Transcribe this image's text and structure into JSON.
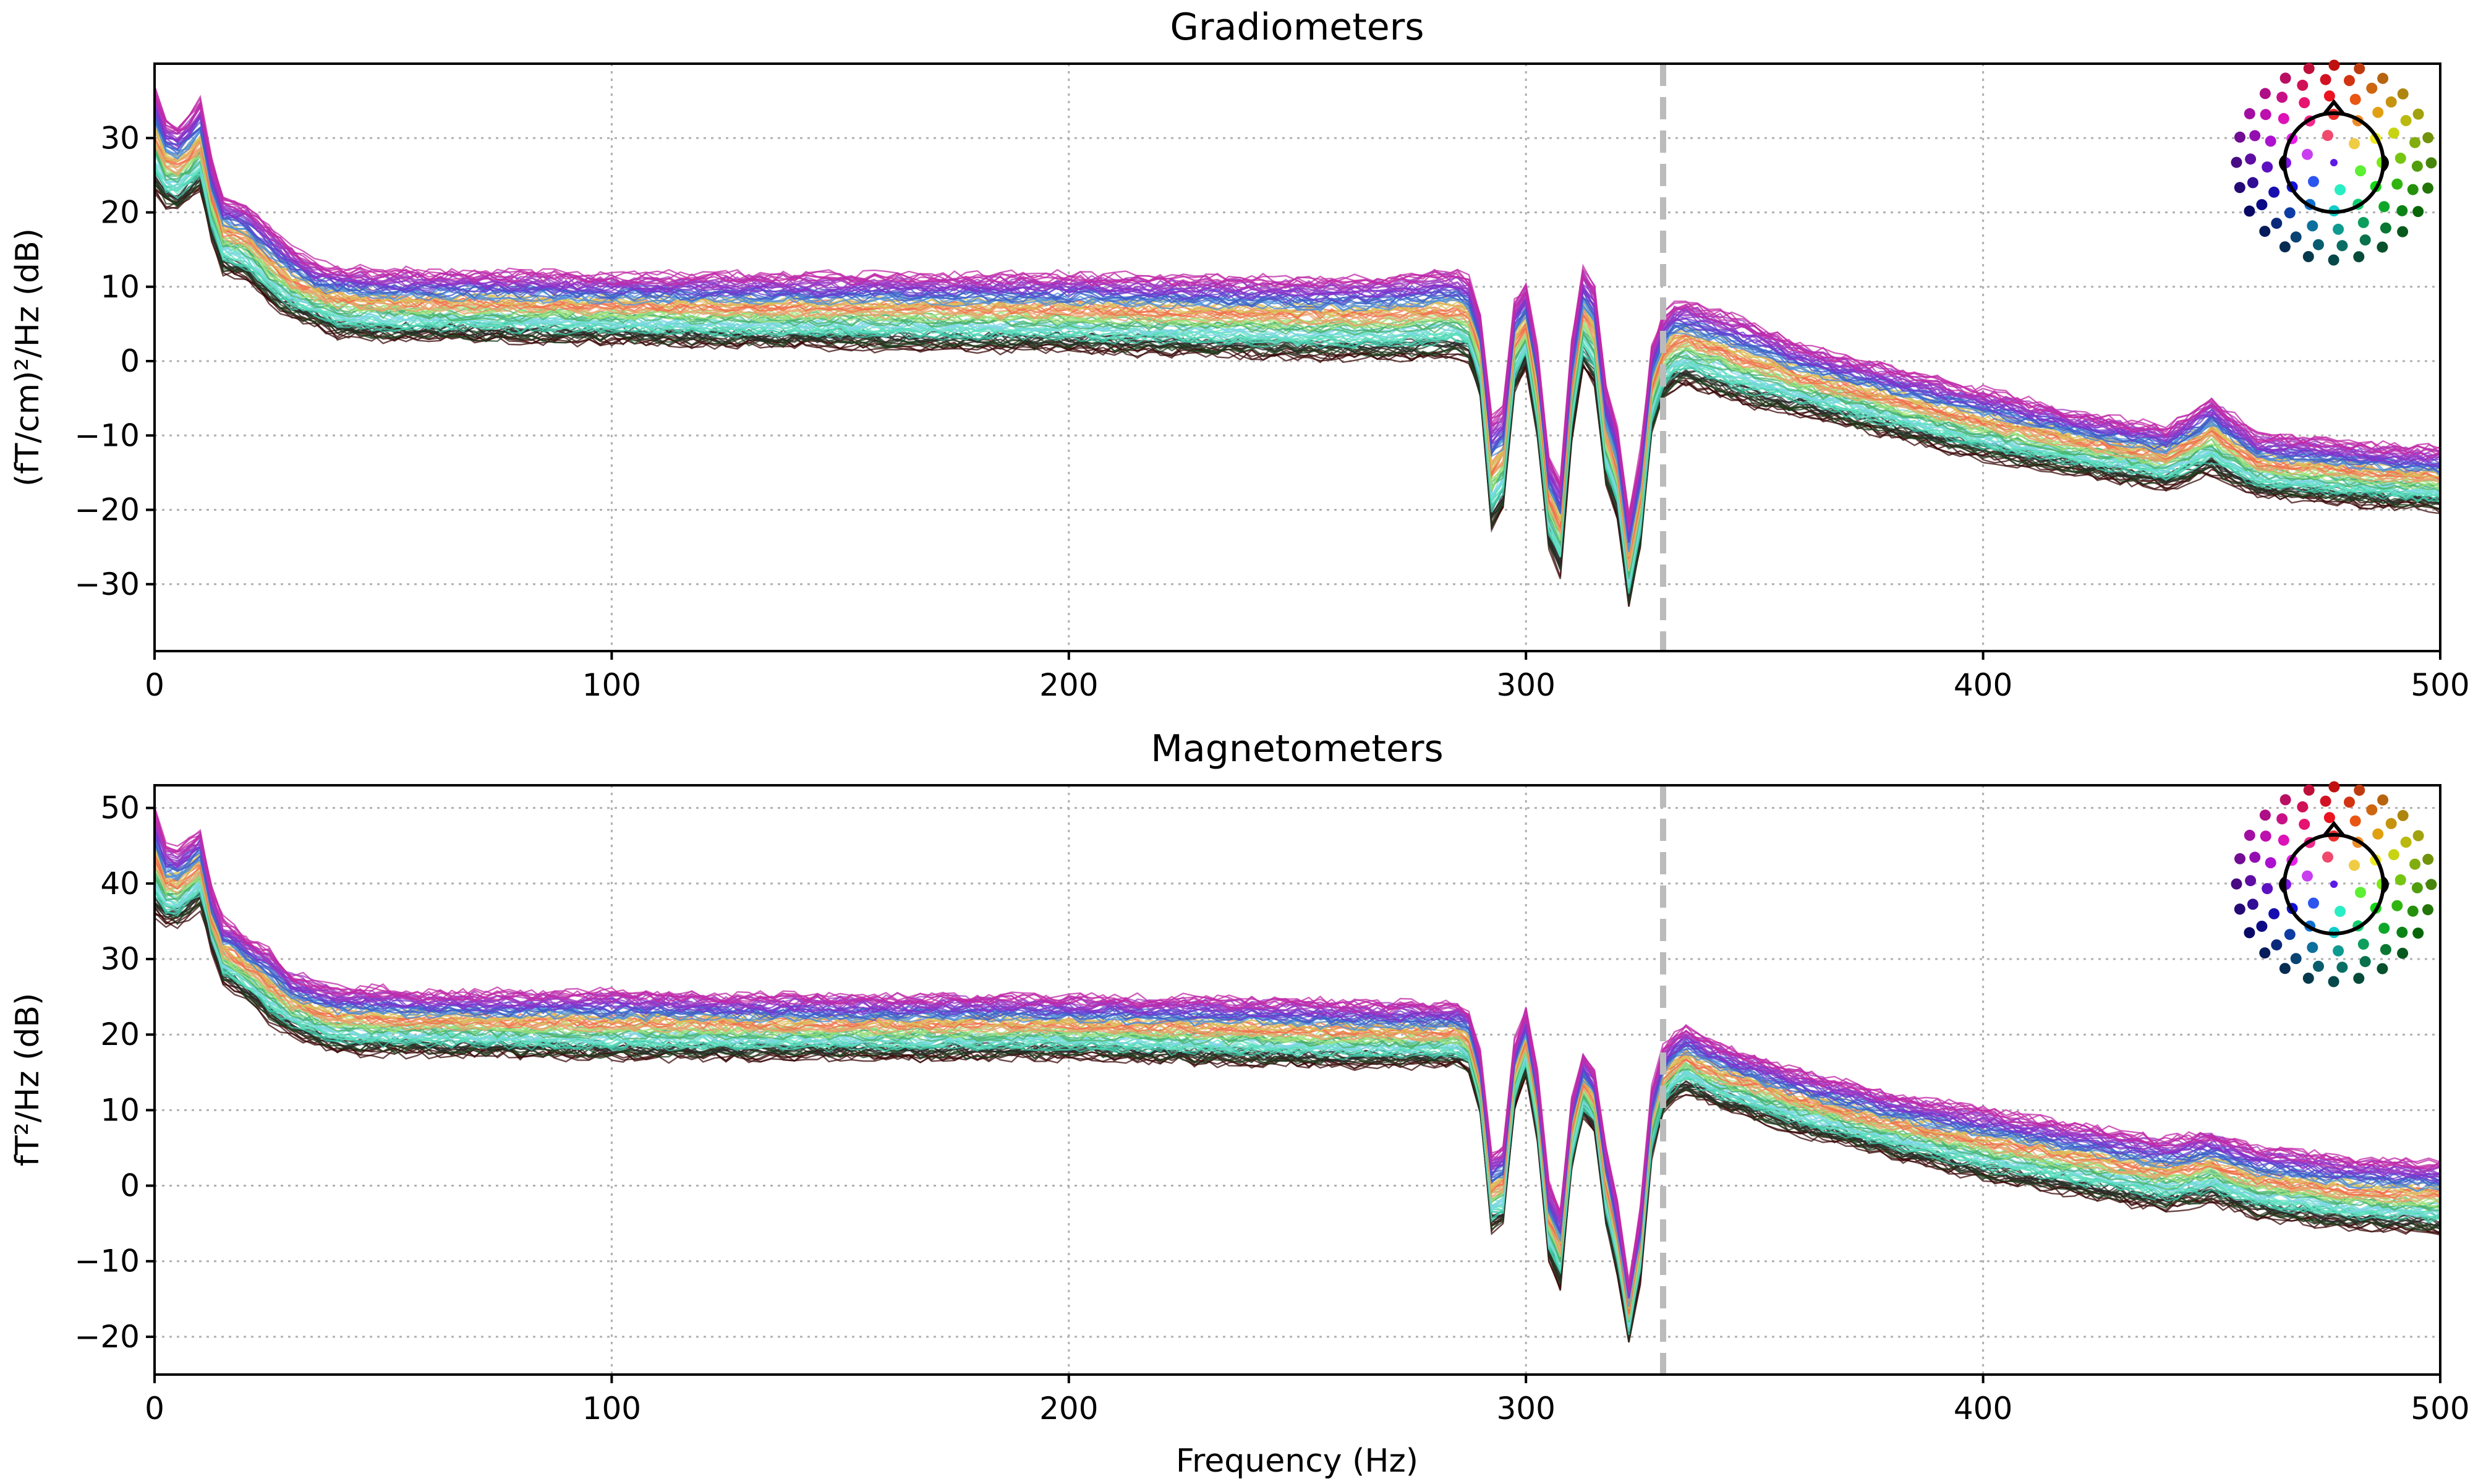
{
  "chart_data": [
    {
      "type": "line",
      "title": "Gradiometers",
      "xlabel": "",
      "ylabel": "(fT/cm)²/Hz (dB)",
      "xlim": [
        0,
        500
      ],
      "ylim": [
        -39,
        40
      ],
      "xticks": [
        0,
        100,
        200,
        300,
        400,
        500
      ],
      "yticks": [
        -30,
        -20,
        -10,
        0,
        10,
        20,
        30
      ],
      "xtick_labels": [
        "0",
        "100",
        "200",
        "300",
        "400",
        "500"
      ],
      "ytick_labels": [
        "−30",
        "−20",
        "−10",
        "0",
        "10",
        "20",
        "30"
      ],
      "grid": true,
      "vline_x": 330,
      "vline_color": "#bbbbbb",
      "inset": "sensor-layout-top-right",
      "envelope": {
        "x": [
          0,
          2,
          4,
          6,
          8,
          10,
          12,
          15,
          20,
          25,
          30,
          35,
          40,
          50,
          60,
          100,
          150,
          200,
          250,
          270,
          280,
          285,
          288,
          291,
          293,
          294,
          296,
          298,
          300,
          302,
          304,
          306,
          307,
          309,
          311,
          313,
          315,
          317,
          319,
          321,
          323,
          324,
          326,
          328,
          330,
          333,
          335,
          340,
          345,
          350,
          360,
          380,
          400,
          420,
          440,
          450,
          460,
          480,
          500
        ],
        "upper": [
          37,
          33,
          31,
          32,
          33,
          35,
          28,
          22,
          21,
          18,
          15,
          13,
          12.5,
          12,
          12,
          11.5,
          11.5,
          11.5,
          11,
          11,
          12,
          12,
          11,
          4,
          -12,
          -15,
          2,
          10,
          10,
          5,
          -8,
          -18,
          -20,
          -5,
          10,
          13,
          10,
          -5,
          0,
          -18,
          -22,
          -20,
          -5,
          4,
          6,
          8,
          8,
          7,
          6,
          5,
          2,
          -1,
          -4,
          -7,
          -9,
          -5,
          -10,
          -11,
          -12
        ],
        "center": [
          30,
          27,
          25,
          26,
          27,
          29,
          22,
          17,
          16,
          13,
          11,
          9,
          8,
          7.5,
          7.5,
          7,
          6.5,
          6,
          5.5,
          5.5,
          6,
          6.5,
          5,
          -2,
          -20,
          -22,
          -5,
          3,
          4,
          -2,
          -15,
          -25,
          -27,
          -12,
          3,
          6,
          3,
          -12,
          -7,
          -25,
          -30,
          -27,
          -12,
          -2,
          0,
          2.5,
          2.5,
          1.5,
          0.5,
          -0.5,
          -2.5,
          -5.5,
          -8.5,
          -11,
          -13,
          -10,
          -14,
          -15.5,
          -16.5
        ],
        "lower": [
          23,
          21,
          20,
          21,
          22,
          23,
          17,
          12,
          11,
          8,
          6,
          5,
          3.5,
          3,
          3,
          2.5,
          2,
          1.5,
          0.5,
          0.5,
          0.5,
          1,
          0,
          -7,
          -28,
          -30,
          -10,
          -2,
          -1,
          -7,
          -20,
          -30,
          -32,
          -18,
          -3,
          0,
          -3,
          -18,
          -12,
          -30,
          -34,
          -32,
          -18,
          -7,
          -5,
          -3,
          -3,
          -4,
          -5,
          -6,
          -7,
          -10,
          -13,
          -15,
          -17,
          -15,
          -18,
          -19,
          -20
        ]
      }
    },
    {
      "type": "line",
      "title": "Magnetometers",
      "xlabel": "Frequency (Hz)",
      "ylabel": "fT²/Hz (dB)",
      "xlim": [
        0,
        500
      ],
      "ylim": [
        -25,
        53
      ],
      "xticks": [
        0,
        100,
        200,
        300,
        400,
        500
      ],
      "yticks": [
        -20,
        -10,
        0,
        10,
        20,
        30,
        40,
        50
      ],
      "xtick_labels": [
        "0",
        "100",
        "200",
        "300",
        "400",
        "500"
      ],
      "ytick_labels": [
        "−20",
        "−10",
        "0",
        "10",
        "20",
        "30",
        "40",
        "50"
      ],
      "grid": true,
      "vline_x": 330,
      "vline_color": "#bbbbbb",
      "inset": "sensor-layout-top-right",
      "envelope": {
        "x": [
          0,
          2,
          4,
          6,
          8,
          10,
          12,
          15,
          20,
          25,
          30,
          35,
          40,
          50,
          60,
          100,
          150,
          200,
          250,
          270,
          280,
          285,
          288,
          291,
          293,
          294,
          296,
          298,
          300,
          302,
          304,
          306,
          307,
          309,
          311,
          313,
          315,
          317,
          319,
          321,
          323,
          324,
          326,
          328,
          330,
          333,
          335,
          340,
          345,
          350,
          360,
          380,
          400,
          420,
          440,
          450,
          460,
          480,
          500
        ],
        "upper": [
          50,
          45,
          44,
          45,
          46,
          47,
          40,
          35,
          33,
          31,
          28,
          27,
          26,
          26,
          25.5,
          25.5,
          25,
          25,
          24.5,
          24,
          24,
          24,
          23,
          15,
          0,
          -3,
          13,
          21,
          23,
          18,
          5,
          -5,
          -7,
          8,
          15,
          18,
          15,
          5,
          5,
          -10,
          -14,
          -12,
          5,
          15,
          18,
          20,
          21,
          19,
          18,
          17,
          15,
          12,
          10,
          8,
          6,
          7,
          5,
          3.5,
          3
        ],
        "center": [
          43,
          40,
          39,
          40,
          41,
          42,
          36,
          31,
          29,
          26,
          24,
          23,
          22,
          21.5,
          21.5,
          21,
          21,
          21,
          20,
          20,
          20,
          20,
          19,
          11,
          -5,
          -8,
          8,
          17,
          19,
          14,
          0,
          -10,
          -12,
          3,
          11,
          14,
          11,
          0,
          0,
          -14,
          -18,
          -16,
          0,
          11,
          14,
          16,
          16.5,
          15,
          14,
          13,
          11,
          8,
          5.5,
          3.5,
          1.5,
          2.5,
          0.5,
          -1,
          -1.5
        ],
        "lower": [
          36,
          35,
          34,
          35,
          36,
          37,
          32,
          27,
          25,
          22,
          20,
          19,
          18,
          17.5,
          17.5,
          17,
          17,
          17,
          16,
          16,
          16,
          16,
          15,
          7,
          -10,
          -13,
          3,
          13,
          15,
          10,
          -5,
          -15,
          -17,
          -2,
          7,
          10,
          7,
          -5,
          -5,
          -18,
          -21,
          -20,
          -5,
          7,
          10,
          12,
          12.5,
          11,
          10,
          9,
          7,
          4,
          1,
          -1,
          -3,
          -2,
          -4,
          -5.5,
          -6
        ]
      }
    }
  ]
}
